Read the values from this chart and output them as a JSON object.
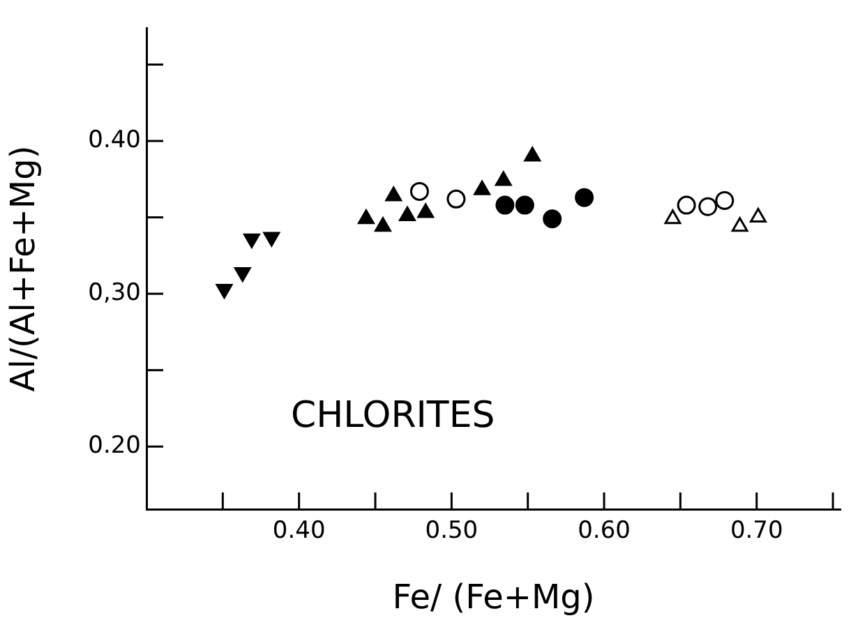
{
  "chart_data": {
    "type": "scatter",
    "xlabel": "Fe/ (Fe+Mg)",
    "ylabel": "Al/(Al+Fe+Mg)",
    "annotations": [
      "CHLORITES"
    ],
    "xlim": [
      0.3,
      0.755
    ],
    "xticks": [
      {
        "value": 0.35,
        "label": null
      },
      {
        "value": 0.4,
        "label": "0.40"
      },
      {
        "value": 0.45,
        "label": null
      },
      {
        "value": 0.5,
        "label": "0.50"
      },
      {
        "value": 0.55,
        "label": null
      },
      {
        "value": 0.6,
        "label": "0.60"
      },
      {
        "value": 0.65,
        "label": null
      },
      {
        "value": 0.7,
        "label": "0.70"
      },
      {
        "value": 0.75,
        "label": null
      }
    ],
    "ylim": [
      0.159,
      0.474
    ],
    "yticks": [
      {
        "value": 0.2,
        "label": "0.20"
      },
      {
        "value": 0.25,
        "label": null
      },
      {
        "value": 0.3,
        "label": "0,30"
      },
      {
        "value": 0.35,
        "label": null
      },
      {
        "value": 0.4,
        "label": "0.40"
      },
      {
        "value": 0.45,
        "label": null
      }
    ],
    "grid": false,
    "legend": false,
    "series": [
      {
        "color": "#000000",
        "marker": "triangle-down",
        "x": [
          0.351,
          0.363,
          0.369,
          0.382
        ],
        "values": [
          0.303,
          0.314,
          0.336,
          0.337
        ]
      },
      {
        "color": "#000000",
        "marker": "triangle",
        "x": [
          0.444,
          0.455,
          0.462,
          0.471,
          0.483,
          0.52,
          0.534,
          0.553
        ],
        "values": [
          0.349,
          0.344,
          0.364,
          0.351,
          0.353,
          0.368,
          0.374,
          0.39
        ]
      },
      {
        "color": "#000000",
        "marker": "circle-open",
        "x": [
          0.479,
          0.503
        ],
        "values": [
          0.367,
          0.362
        ]
      },
      {
        "color": "#000000",
        "marker": "circle",
        "x": [
          0.535,
          0.548,
          0.566,
          0.587
        ],
        "values": [
          0.358,
          0.358,
          0.349,
          0.363
        ]
      },
      {
        "color": "#000000",
        "marker": "circle-open",
        "x": [
          0.654,
          0.668,
          0.679
        ],
        "values": [
          0.358,
          0.357,
          0.361
        ]
      },
      {
        "color": "#000000",
        "marker": "triangle-open",
        "x": [
          0.645,
          0.689,
          0.701
        ],
        "values": [
          0.349,
          0.344,
          0.35
        ]
      }
    ]
  }
}
